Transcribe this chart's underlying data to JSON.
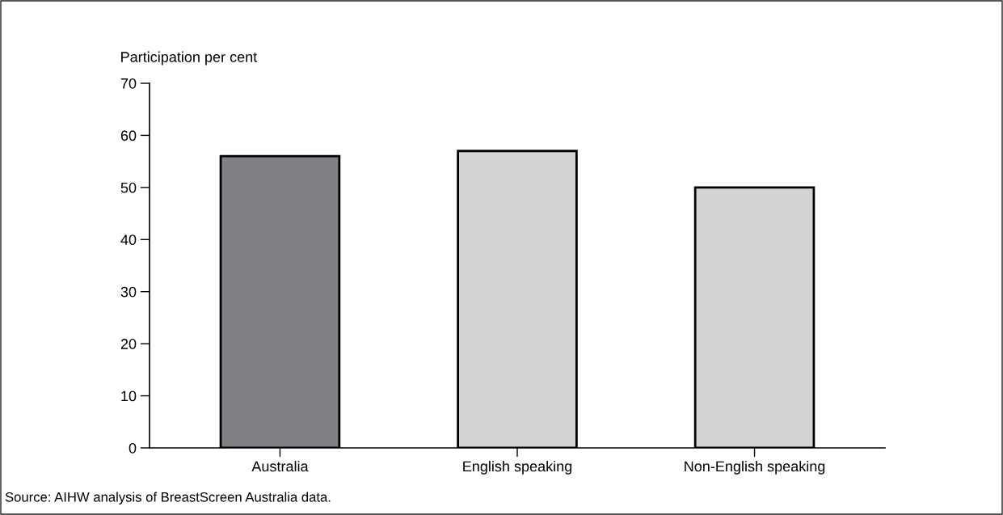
{
  "chart_data": {
    "type": "bar",
    "ylabel": "Participation per cent",
    "categories": [
      "Australia",
      "English speaking",
      "Non-English speaking"
    ],
    "values": [
      56,
      57,
      50
    ],
    "colors": [
      "#808184",
      "#d1d3d4",
      "#d1d3d4"
    ],
    "ylim": [
      0,
      70
    ],
    "yticks": [
      0,
      10,
      20,
      30,
      40,
      50,
      60,
      70
    ],
    "grid": false,
    "annotations": [
      "Source: AIHW analysis of BreastScreen Australia data."
    ]
  }
}
